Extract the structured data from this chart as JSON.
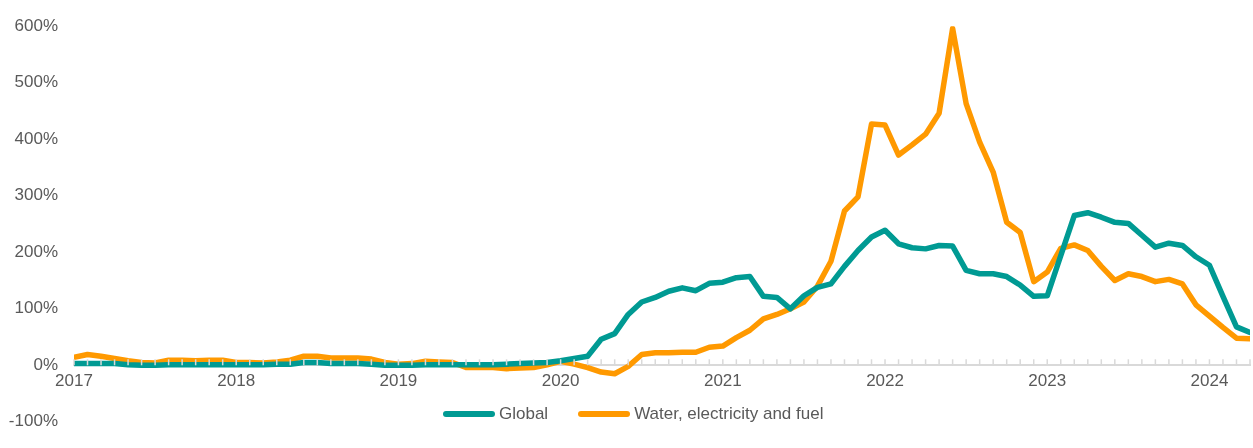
{
  "chart_data": {
    "type": "line",
    "legend": "bottom",
    "grid": false,
    "marker": "none",
    "line_style": "solid",
    "xlim": [
      "2017-01",
      "2024-04"
    ],
    "xticks": [
      "2017",
      "2018",
      "2019",
      "2020",
      "2021",
      "2022",
      "2023",
      "2024"
    ],
    "ylim": [
      -100,
      600
    ],
    "yticks": [
      {
        "value": -100,
        "label": "-100%"
      },
      {
        "value": 0,
        "label": "0%"
      },
      {
        "value": 100,
        "label": "100%"
      },
      {
        "value": 200,
        "label": "200%"
      },
      {
        "value": 300,
        "label": "300%"
      },
      {
        "value": 400,
        "label": "400%"
      },
      {
        "value": 500,
        "label": "500%"
      },
      {
        "value": 600,
        "label": "600%"
      }
    ],
    "x": [
      "2017-01",
      "2017-02",
      "2017-03",
      "2017-04",
      "2017-05",
      "2017-06",
      "2017-07",
      "2017-08",
      "2017-09",
      "2017-10",
      "2017-11",
      "2017-12",
      "2018-01",
      "2018-02",
      "2018-03",
      "2018-04",
      "2018-05",
      "2018-06",
      "2018-07",
      "2018-08",
      "2018-09",
      "2018-10",
      "2018-11",
      "2018-12",
      "2019-01",
      "2019-02",
      "2019-03",
      "2019-04",
      "2019-05",
      "2019-06",
      "2019-07",
      "2019-08",
      "2019-09",
      "2019-10",
      "2019-11",
      "2019-12",
      "2020-01",
      "2020-02",
      "2020-03",
      "2020-04",
      "2020-05",
      "2020-06",
      "2020-07",
      "2020-08",
      "2020-09",
      "2020-10",
      "2020-11",
      "2020-12",
      "2021-01",
      "2021-02",
      "2021-03",
      "2021-04",
      "2021-05",
      "2021-06",
      "2021-07",
      "2021-08",
      "2021-09",
      "2021-10",
      "2021-11",
      "2021-12",
      "2022-01",
      "2022-02",
      "2022-03",
      "2022-04",
      "2022-05",
      "2022-06",
      "2022-07",
      "2022-08",
      "2022-09",
      "2022-10",
      "2022-11",
      "2022-12",
      "2023-01",
      "2023-02",
      "2023-03",
      "2023-04",
      "2023-05",
      "2023-06",
      "2023-07",
      "2023-08",
      "2023-09",
      "2023-10",
      "2023-11",
      "2023-12",
      "2024-01",
      "2024-02",
      "2024-03",
      "2024-04"
    ],
    "series": [
      {
        "name": "Global",
        "color": "#009a93",
        "values": [
          3,
          3,
          3,
          3,
          1,
          0,
          0,
          1,
          1,
          1,
          1,
          1,
          1,
          1,
          1,
          2,
          2,
          5,
          5,
          3,
          3,
          3,
          2,
          0,
          0,
          0,
          1,
          1,
          1,
          1,
          1,
          1,
          2,
          3,
          4,
          5,
          8,
          12,
          16,
          46,
          56,
          90,
          112,
          120,
          131,
          137,
          132,
          145,
          147,
          155,
          157,
          122,
          120,
          100,
          123,
          138,
          144,
          175,
          203,
          227,
          239,
          215,
          208,
          206,
          212,
          211,
          168,
          162,
          162,
          157,
          142,
          122,
          123,
          194,
          265,
          270,
          262,
          253,
          251,
          230,
          209,
          216,
          212,
          192,
          177,
          122,
          68,
          58
        ]
      },
      {
        "name": "Water, electricity and fuel",
        "color": "#ff9900",
        "values": [
          14,
          19,
          16,
          12,
          8,
          5,
          4,
          9,
          9,
          8,
          9,
          9,
          5,
          5,
          4,
          6,
          9,
          16,
          16,
          13,
          13,
          13,
          11,
          5,
          2,
          3,
          7,
          6,
          5,
          -4,
          -4,
          -4,
          -6,
          -5,
          -4,
          1,
          7,
          2,
          -4,
          -12,
          -15,
          -2,
          19,
          22,
          22,
          23,
          23,
          32,
          34,
          49,
          62,
          82,
          90,
          100,
          112,
          140,
          184,
          273,
          298,
          427,
          425,
          372,
          390,
          409,
          446,
          596,
          463,
          395,
          342,
          253,
          235,
          148,
          165,
          207,
          213,
          203,
          175,
          150,
          162,
          157,
          148,
          152,
          144,
          107,
          87,
          67,
          48,
          47
        ]
      }
    ]
  }
}
